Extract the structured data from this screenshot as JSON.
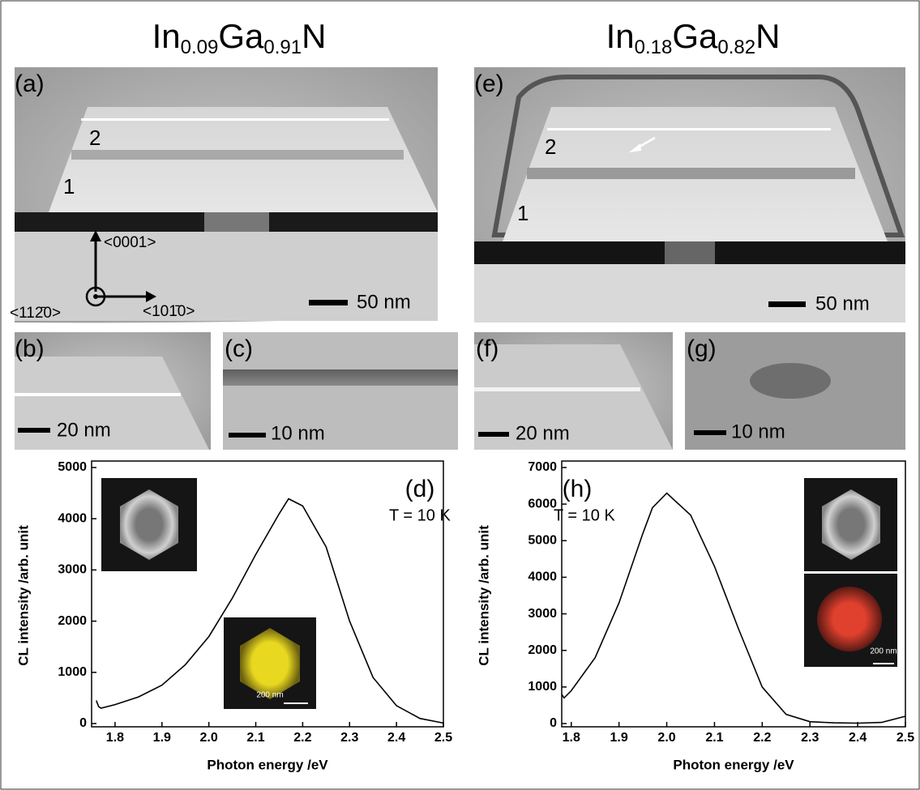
{
  "headings": [
    {
      "parts": [
        "In",
        "0.09",
        "Ga",
        "0.91",
        "N"
      ]
    },
    {
      "parts": [
        "In",
        "0.18",
        "Ga",
        "0.82",
        "N"
      ]
    }
  ],
  "micrographs": [
    {
      "label": "(a)",
      "layers": [
        "1",
        "2"
      ],
      "directions": [
        "<0001>",
        "<112̄0>",
        "<101̄0>"
      ],
      "scale_bar": "50 nm"
    },
    {
      "label": "(b)",
      "scale_bar": "20 nm"
    },
    {
      "label": "(c)",
      "scale_bar": "10 nm"
    },
    {
      "label": "(e)",
      "layers": [
        "1",
        "2"
      ],
      "scale_bar": "50 nm"
    },
    {
      "label": "(f)",
      "scale_bar": "20 nm"
    },
    {
      "label": "(g)",
      "scale_bar": "10 nm"
    }
  ],
  "chart_data": [
    {
      "type": "line",
      "panel_label": "(d)",
      "annotation": "T = 10 K",
      "inset_scale": "200 nm",
      "xlabel": "Photon energy /eV",
      "ylabel": "CL intensity /arb. unit",
      "x": [
        1.76,
        1.765,
        1.77,
        1.8,
        1.85,
        1.9,
        1.95,
        2.0,
        2.05,
        2.1,
        2.15,
        2.17,
        2.2,
        2.25,
        2.3,
        2.35,
        2.4,
        2.45,
        2.5
      ],
      "series": [
        {
          "color": "#000000",
          "values": [
            450,
            330,
            300,
            370,
            520,
            750,
            1150,
            1700,
            2450,
            3300,
            4100,
            4390,
            4250,
            3450,
            2000,
            900,
            350,
            100,
            10
          ]
        }
      ],
      "xlim": [
        1.75,
        2.5
      ],
      "xticks": [
        1.8,
        1.9,
        {
          "value": 2,
          "label": "2.0"
        },
        2.1,
        2.2,
        2.3,
        2.4,
        2.5
      ],
      "ylim": [
        0,
        5000
      ],
      "yticks": [
        0,
        1000,
        2000,
        3000,
        4000,
        5000
      ]
    },
    {
      "type": "line",
      "panel_label": "(h)",
      "annotation": "T = 10 K",
      "inset_scale": "200 nm",
      "xlabel": "Photon energy /eV",
      "ylabel": "CL intensity /arb. unit",
      "x": [
        1.78,
        1.785,
        1.8,
        1.85,
        1.9,
        1.95,
        1.97,
        2.0,
        2.05,
        2.1,
        2.15,
        2.2,
        2.25,
        2.3,
        2.35,
        2.4,
        2.45,
        2.5
      ],
      "series": [
        {
          "color": "#000000",
          "values": [
            800,
            700,
            900,
            1800,
            3300,
            5200,
            5900,
            6300,
            5700,
            4300,
            2600,
            1000,
            250,
            50,
            20,
            10,
            30,
            200
          ]
        }
      ],
      "xlim": [
        1.78,
        2.5
      ],
      "xticks": [
        1.8,
        1.9,
        {
          "value": 2,
          "label": "2.0"
        },
        2.1,
        2.2,
        2.3,
        2.4,
        2.5
      ],
      "ylim": [
        0,
        7000
      ],
      "yticks": [
        0,
        1000,
        2000,
        3000,
        4000,
        5000,
        6000,
        7000
      ]
    }
  ]
}
